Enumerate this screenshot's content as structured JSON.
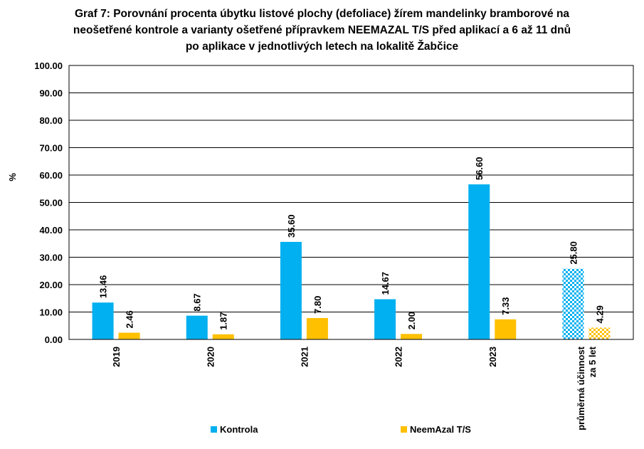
{
  "chart_data": {
    "type": "bar",
    "title_lines": [
      "Graf 7: Porovnání procenta úbytku listové plochy (defoliace) žírem mandelinky bramborové na",
      "neošetřené kontrole a varianty ošetřené přípravkem NEEMAZAL T/S před aplikací a  6 až 11 dnů",
      "po aplikace v jednotlivých letech na lokalitě Žabčice"
    ],
    "ylabel": "%",
    "ylim": [
      0,
      100
    ],
    "yticks": [
      "0.00",
      "10.00",
      "20.00",
      "30.00",
      "40.00",
      "50.00",
      "60.00",
      "70.00",
      "80.00",
      "90.00",
      "100.00"
    ],
    "categories": [
      {
        "lines": [
          "2019"
        ]
      },
      {
        "lines": [
          "2020"
        ]
      },
      {
        "lines": [
          "2021"
        ]
      },
      {
        "lines": [
          "2022"
        ]
      },
      {
        "lines": [
          "2023"
        ]
      },
      {
        "lines": [
          "průměrná účinnost",
          "za 5 let"
        ]
      }
    ],
    "series": [
      {
        "name": "Kontrola",
        "color": "#00B0F0",
        "values": [
          13.46,
          8.67,
          35.6,
          14.67,
          56.6,
          25.8
        ],
        "labels": [
          "13.46",
          "8.67",
          "35.60",
          "14.67",
          "56.60",
          "25.80"
        ]
      },
      {
        "name": "NeemAzal T/S",
        "color": "#FFC000",
        "values": [
          2.46,
          1.87,
          7.8,
          2.0,
          7.33,
          4.29
        ],
        "labels": [
          "2.46",
          "1.87",
          "7.80",
          "2.00",
          "7.33",
          "4.29"
        ]
      }
    ],
    "patterned_category_index": 5,
    "grid": true,
    "legend_position": "bottom"
  }
}
